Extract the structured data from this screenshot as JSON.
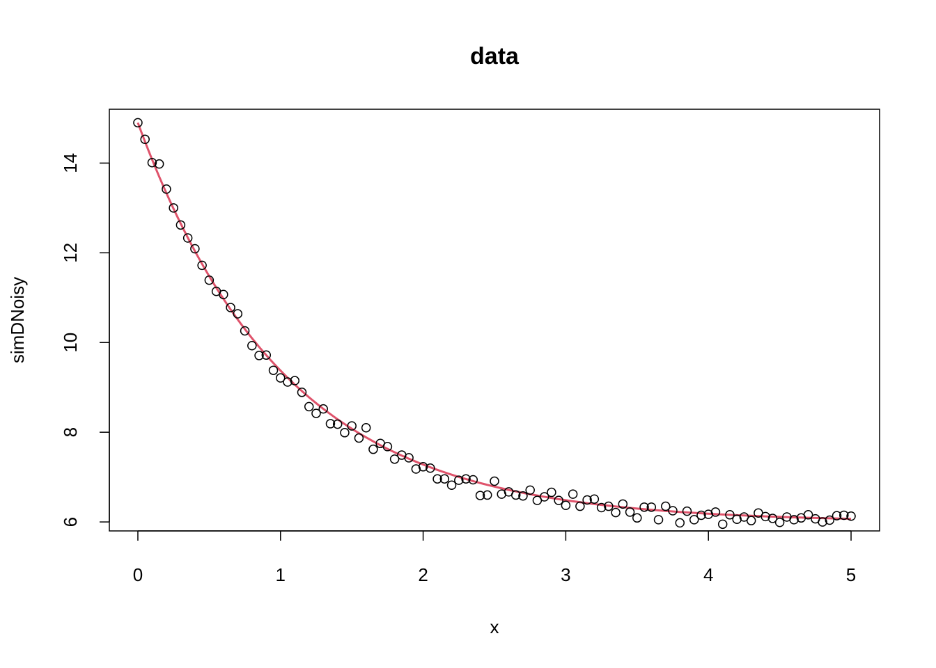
{
  "chart_data": {
    "type": "scatter",
    "title": "data",
    "xlabel": "x",
    "ylabel": "simDNoisy",
    "xlim": [
      -0.2,
      5.2
    ],
    "ylim": [
      5.8,
      15.2
    ],
    "xticks": [
      "0",
      "1",
      "2",
      "3",
      "4",
      "5"
    ],
    "yticks": [
      "6",
      "8",
      "10",
      "12",
      "14"
    ],
    "grid": false,
    "legend": "none",
    "x": [
      0,
      0.05,
      0.1,
      0.15,
      0.2,
      0.25,
      0.3,
      0.35,
      0.4,
      0.45,
      0.5,
      0.55,
      0.6,
      0.65,
      0.7,
      0.75,
      0.8,
      0.85,
      0.9,
      0.95,
      1.0,
      1.05,
      1.1,
      1.15,
      1.2,
      1.25,
      1.3,
      1.35,
      1.4,
      1.45,
      1.5,
      1.55,
      1.6,
      1.65,
      1.7,
      1.75,
      1.8,
      1.85,
      1.9,
      1.95,
      2.0,
      2.05,
      2.1,
      2.15,
      2.2,
      2.25,
      2.3,
      2.35,
      2.4,
      2.45,
      2.5,
      2.55,
      2.6,
      2.65,
      2.7,
      2.75,
      2.8,
      2.85,
      2.9,
      2.95,
      3.0,
      3.05,
      3.1,
      3.15,
      3.2,
      3.25,
      3.3,
      3.35,
      3.4,
      3.45,
      3.5,
      3.55,
      3.6,
      3.65,
      3.7,
      3.75,
      3.8,
      3.85,
      3.9,
      3.95,
      4.0,
      4.05,
      4.1,
      4.15,
      4.2,
      4.25,
      4.3,
      4.35,
      4.4,
      4.45,
      4.5,
      4.55,
      4.6,
      4.65,
      4.7,
      4.75,
      4.8,
      4.85,
      4.9,
      4.95,
      5.0
    ],
    "y": [
      14.9,
      14.53,
      14.01,
      13.98,
      13.42,
      13.0,
      12.62,
      12.33,
      12.09,
      11.72,
      11.39,
      11.14,
      11.07,
      10.78,
      10.64,
      10.26,
      9.93,
      9.71,
      9.72,
      9.38,
      9.21,
      9.12,
      9.15,
      8.89,
      8.57,
      8.42,
      8.52,
      8.19,
      8.18,
      7.99,
      8.14,
      7.87,
      8.1,
      7.62,
      7.75,
      7.68,
      7.4,
      7.49,
      7.43,
      7.18,
      7.23,
      7.2,
      6.96,
      6.96,
      6.82,
      6.93,
      6.96,
      6.94,
      6.59,
      6.6,
      6.91,
      6.62,
      6.67,
      6.6,
      6.58,
      6.71,
      6.48,
      6.56,
      6.66,
      6.48,
      6.37,
      6.62,
      6.35,
      6.49,
      6.51,
      6.32,
      6.35,
      6.21,
      6.4,
      6.22,
      6.09,
      6.33,
      6.33,
      6.05,
      6.35,
      6.25,
      5.98,
      6.24,
      6.05,
      6.15,
      6.17,
      6.22,
      5.95,
      6.16,
      6.06,
      6.11,
      6.03,
      6.2,
      6.12,
      6.08,
      5.99,
      6.11,
      6.05,
      6.09,
      6.16,
      6.07,
      6.0,
      6.04,
      6.14,
      6.15,
      6.13
    ],
    "fit": {
      "type": "line",
      "color": "#DF536B",
      "formula": "6 + 8.9*exp(-0.97*x)"
    },
    "point_color": "#000000"
  }
}
